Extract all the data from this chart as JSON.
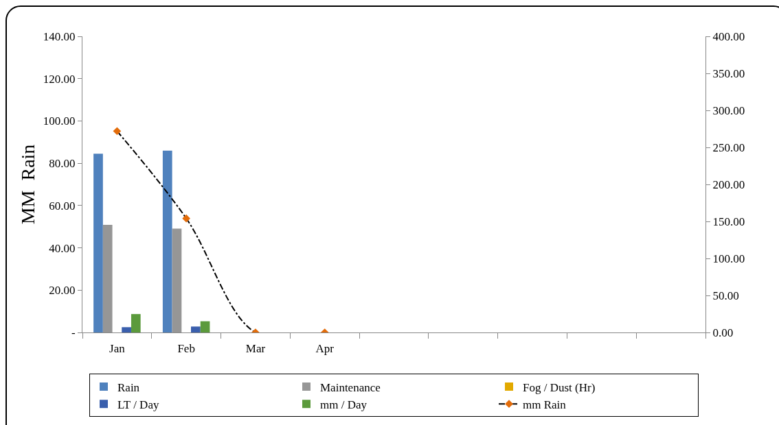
{
  "chart_data": {
    "type": "bar",
    "ylabel": "MM  Rain",
    "categories": [
      "Jan",
      "Feb",
      "Mar",
      "Apr",
      null,
      null,
      null,
      null,
      null
    ],
    "series": [
      {
        "name": "Rain",
        "color": "#4f81bd",
        "values": [
          84.5,
          86.0,
          null,
          null,
          null,
          null,
          null,
          null,
          null
        ]
      },
      {
        "name": "Maintenance",
        "color": "#969696",
        "values": [
          50.9,
          49.1,
          null,
          null,
          null,
          null,
          null,
          null,
          null
        ]
      },
      {
        "name": "Fog / Dust (Hr)",
        "color": "#e2a900",
        "values": [
          0,
          0,
          null,
          null,
          null,
          null,
          null,
          null,
          null
        ]
      },
      {
        "name": "LT / Day",
        "color": "#3a5fad",
        "values": [
          2.5,
          2.8,
          null,
          null,
          null,
          null,
          null,
          null,
          null
        ]
      },
      {
        "name": "mm / Day",
        "color": "#5b9a3c",
        "values": [
          8.7,
          5.3,
          null,
          null,
          null,
          null,
          null,
          null,
          null
        ]
      },
      {
        "name": "mm Rain",
        "type": "line",
        "axis": "y2",
        "color": "#000000",
        "colors": [
          "#e36c0a",
          "#e36c0a",
          "#e36c0a",
          "#e36c0a",
          "#e36c0a",
          "#e36c0a",
          "#e36c0a",
          "#e36c0a",
          "#e36c0a"
        ],
        "marker": "diamond",
        "line_style": "dashed",
        "values": [
          272,
          154,
          0,
          0,
          null,
          null,
          null,
          null,
          null
        ]
      }
    ],
    "ylim": [
      0,
      140
    ],
    "yticks": [
      {
        "value": 0,
        "label": "-"
      },
      {
        "value": 20,
        "label": "20.00"
      },
      {
        "value": 40,
        "label": "40.00"
      },
      {
        "value": 60,
        "label": "60.00"
      },
      {
        "value": 80,
        "label": "80.00"
      },
      {
        "value": 100,
        "label": "100.00"
      },
      {
        "value": 120,
        "label": "120.00"
      },
      {
        "value": 140,
        "label": "140.00"
      }
    ],
    "y2lim": [
      0,
      400
    ],
    "y2ticks": [
      {
        "value": 0,
        "label": "0.00"
      },
      {
        "value": 50,
        "label": "50.00"
      },
      {
        "value": 100,
        "label": "100.00"
      },
      {
        "value": 150,
        "label": "150.00"
      },
      {
        "value": 200,
        "label": "200.00"
      },
      {
        "value": 250,
        "label": "250.00"
      },
      {
        "value": 300,
        "label": "300.00"
      },
      {
        "value": 350,
        "label": "350.00"
      },
      {
        "value": 400,
        "label": "400.00"
      }
    ],
    "grid": false,
    "legend": "bottom"
  }
}
